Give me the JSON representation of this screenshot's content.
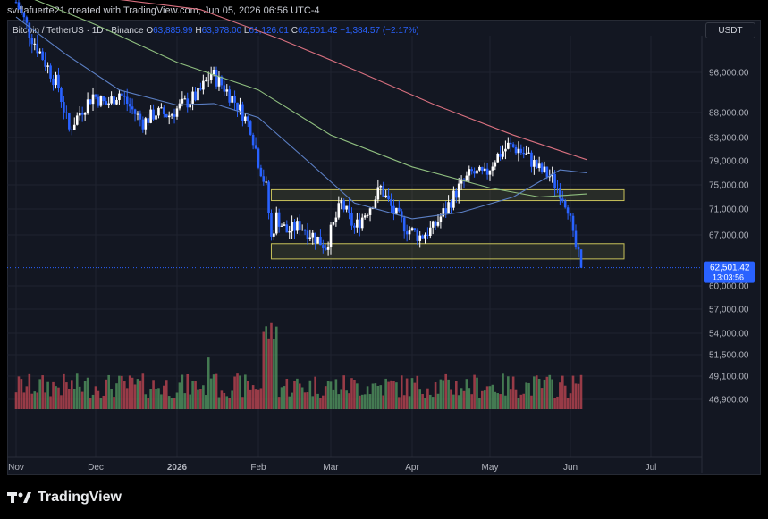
{
  "attribution": "svillafuerte21 created with TradingView.com, Jun 05, 2026 06:56 UTC-4",
  "brand": "TradingView",
  "legend": {
    "symbol": "Bitcoin / TetherUS · 1D · Binance",
    "o_label": "O",
    "o": "63,885.99",
    "h_label": "H",
    "h": "63,978.00",
    "l_label": "L",
    "l": "61,126.01",
    "c_label": "C",
    "c": "62,501.42",
    "change": "−1,384.57 (−2.17%)"
  },
  "currency": "USDT",
  "price_tag": {
    "price": "62,501.42",
    "countdown": "13:03:56"
  },
  "colors": {
    "background": "#131722",
    "up": "#ffffff",
    "down": "#2962ff",
    "vol_up": "#4d8c5a",
    "vol_down": "#b0424d",
    "ma_fast": "#5b7fc4",
    "ma_mid": "#8fbf7f",
    "ma_slow": "#d9707f",
    "zone": "#c8c25a",
    "accent": "#2962ff"
  },
  "chart_data": {
    "type": "candlestick",
    "y_ticks": [
      96000,
      88000,
      83000,
      79000,
      75000,
      71000,
      67000,
      60000,
      57000,
      54000,
      51500,
      49100,
      46900
    ],
    "y_tick_labels": [
      "96,000.00",
      "88,000.00",
      "83,000.00",
      "79,000.00",
      "75,000.00",
      "71,000.00",
      "67,000.00",
      "60,000.00",
      "57,000.00",
      "54,000.00",
      "51,500.00",
      "49,100.00",
      "46,900.00"
    ],
    "x_ticks": [
      {
        "label": "Nov",
        "date": "2025-11-01"
      },
      {
        "label": "Dec",
        "date": "2025-12-01"
      },
      {
        "label": "2026",
        "date": "2026-01-01"
      },
      {
        "label": "Feb",
        "date": "2026-02-01"
      },
      {
        "label": "Mar",
        "date": "2026-03-01"
      },
      {
        "label": "Apr",
        "date": "2026-04-01"
      },
      {
        "label": "May",
        "date": "2026-05-01"
      },
      {
        "label": "Jun",
        "date": "2026-06-01"
      },
      {
        "label": "Jul",
        "date": "2026-07-01"
      }
    ],
    "current_price": 62501.42,
    "zones": [
      {
        "low": 72400,
        "high": 74200
      },
      {
        "low": 63700,
        "high": 65800
      }
    ],
    "price_path": [
      {
        "date": "2025-11-01",
        "price": 110000
      },
      {
        "date": "2025-11-06",
        "price": 104000
      },
      {
        "date": "2025-11-12",
        "price": 98000
      },
      {
        "date": "2025-11-17",
        "price": 93000
      },
      {
        "date": "2025-11-21",
        "price": 84500
      },
      {
        "date": "2025-11-25",
        "price": 88000
      },
      {
        "date": "2025-11-30",
        "price": 91500
      },
      {
        "date": "2025-12-05",
        "price": 89500
      },
      {
        "date": "2025-12-10",
        "price": 92000
      },
      {
        "date": "2025-12-15",
        "price": 88500
      },
      {
        "date": "2025-12-19",
        "price": 86000
      },
      {
        "date": "2025-12-24",
        "price": 88000
      },
      {
        "date": "2025-12-29",
        "price": 87500
      },
      {
        "date": "2026-01-03",
        "price": 89500
      },
      {
        "date": "2026-01-09",
        "price": 91500
      },
      {
        "date": "2026-01-14",
        "price": 95800
      },
      {
        "date": "2026-01-19",
        "price": 93000
      },
      {
        "date": "2026-01-24",
        "price": 89500
      },
      {
        "date": "2026-01-29",
        "price": 85000
      },
      {
        "date": "2026-02-01",
        "price": 79000
      },
      {
        "date": "2026-02-04",
        "price": 74500
      },
      {
        "date": "2026-02-06",
        "price": 66500
      },
      {
        "date": "2026-02-08",
        "price": 69800
      },
      {
        "date": "2026-02-12",
        "price": 67500
      },
      {
        "date": "2026-02-17",
        "price": 68500
      },
      {
        "date": "2026-02-22",
        "price": 67000
      },
      {
        "date": "2026-02-27",
        "price": 65500
      },
      {
        "date": "2026-03-02",
        "price": 68500
      },
      {
        "date": "2026-03-05",
        "price": 72000
      },
      {
        "date": "2026-03-10",
        "price": 68000
      },
      {
        "date": "2026-03-16",
        "price": 71500
      },
      {
        "date": "2026-03-20",
        "price": 74500
      },
      {
        "date": "2026-03-25",
        "price": 70500
      },
      {
        "date": "2026-03-30",
        "price": 68000
      },
      {
        "date": "2026-04-04",
        "price": 66800
      },
      {
        "date": "2026-04-09",
        "price": 68000
      },
      {
        "date": "2026-04-14",
        "price": 71000
      },
      {
        "date": "2026-04-19",
        "price": 74500
      },
      {
        "date": "2026-04-24",
        "price": 77000
      },
      {
        "date": "2026-04-29",
        "price": 76500
      },
      {
        "date": "2026-05-03",
        "price": 79500
      },
      {
        "date": "2026-05-08",
        "price": 81500
      },
      {
        "date": "2026-05-12",
        "price": 81000
      },
      {
        "date": "2026-05-16",
        "price": 79500
      },
      {
        "date": "2026-05-20",
        "price": 77500
      },
      {
        "date": "2026-05-24",
        "price": 76500
      },
      {
        "date": "2026-05-28",
        "price": 74000
      },
      {
        "date": "2026-05-31",
        "price": 71500
      },
      {
        "date": "2026-06-02",
        "price": 66500
      },
      {
        "date": "2026-06-04",
        "price": 63900
      },
      {
        "date": "2026-06-05",
        "price": 62501
      }
    ],
    "ma_fast": [
      {
        "date": "2025-11-01",
        "price": 107000
      },
      {
        "date": "2025-11-20",
        "price": 99500
      },
      {
        "date": "2025-12-10",
        "price": 92500
      },
      {
        "date": "2026-01-01",
        "price": 89500
      },
      {
        "date": "2026-01-15",
        "price": 89800
      },
      {
        "date": "2026-02-01",
        "price": 87000
      },
      {
        "date": "2026-02-20",
        "price": 79000
      },
      {
        "date": "2026-03-10",
        "price": 72000
      },
      {
        "date": "2026-04-01",
        "price": 69500
      },
      {
        "date": "2026-04-20",
        "price": 70500
      },
      {
        "date": "2026-05-10",
        "price": 73000
      },
      {
        "date": "2026-05-28",
        "price": 77500
      },
      {
        "date": "2026-06-07",
        "price": 77000
      }
    ],
    "ma_mid": [
      {
        "date": "2025-11-01",
        "price": 112000
      },
      {
        "date": "2025-12-01",
        "price": 105500
      },
      {
        "date": "2026-01-01",
        "price": 98000
      },
      {
        "date": "2026-02-01",
        "price": 92500
      },
      {
        "date": "2026-03-01",
        "price": 83500
      },
      {
        "date": "2026-04-01",
        "price": 78000
      },
      {
        "date": "2026-05-01",
        "price": 74500
      },
      {
        "date": "2026-05-20",
        "price": 73000
      },
      {
        "date": "2026-06-07",
        "price": 73500
      }
    ],
    "ma_slow": [
      {
        "date": "2025-12-10",
        "price": 110500
      },
      {
        "date": "2026-01-10",
        "price": 108500
      },
      {
        "date": "2026-02-10",
        "price": 102500
      },
      {
        "date": "2026-03-10",
        "price": 96500
      },
      {
        "date": "2026-04-10",
        "price": 89500
      },
      {
        "date": "2026-05-10",
        "price": 83500
      },
      {
        "date": "2026-06-07",
        "price": 79200
      }
    ]
  }
}
